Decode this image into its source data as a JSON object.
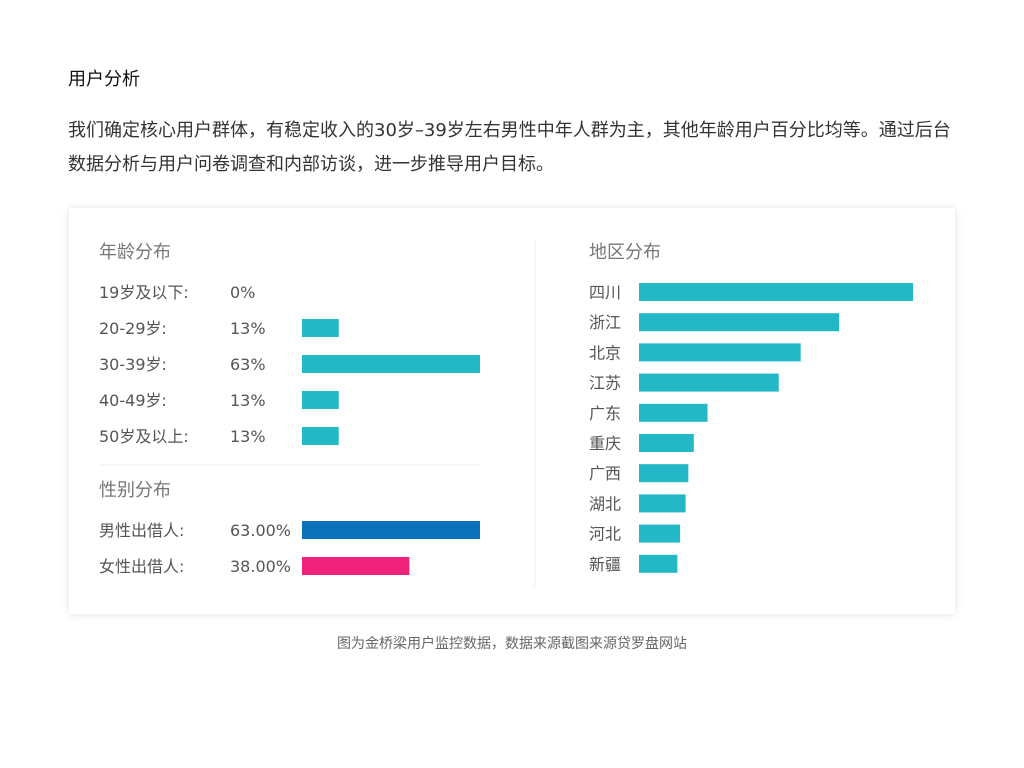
{
  "section": {
    "title": "用户分析",
    "intro": "我们确定核心用户群体，有稳定收入的30岁–39岁左右男性中年人群为主，其他年龄用户百分比均等。通过后台数据分析与用户问卷调查和内部访谈，进一步推导用户目标。"
  },
  "caption": "图为金桥梁用户监控数据，数据来源截图来源贷罗盘网站",
  "colors": {
    "teal": "#22b8c5",
    "blue": "#0972ba",
    "pink": "#ee2278",
    "divider": "#eeeeee"
  },
  "chart_data": [
    {
      "type": "bar",
      "title": "年龄分布",
      "orientation": "horizontal",
      "categories": [
        "19岁及以下:",
        "20-29岁:",
        "30-39岁:",
        "40-49岁:",
        "50岁及以上:"
      ],
      "values": [
        0,
        13,
        63,
        13,
        13
      ],
      "value_labels": [
        "0%",
        "13%",
        "63%",
        "13%",
        "13%"
      ],
      "xlim": [
        0,
        63
      ],
      "color": "#22b8c5"
    },
    {
      "type": "bar",
      "title": "性别分布",
      "orientation": "horizontal",
      "categories": [
        "男性出借人:",
        "女性出借人:"
      ],
      "values": [
        63.0,
        38.0
      ],
      "value_labels": [
        "63.00%",
        "38.00%"
      ],
      "xlim": [
        0,
        63
      ],
      "colors": [
        "#0972ba",
        "#ee2278"
      ]
    },
    {
      "type": "bar",
      "title": "地区分布",
      "orientation": "horizontal",
      "categories": [
        "四川",
        "浙江",
        "北京",
        "江苏",
        "广东",
        "重庆",
        "广西",
        "湖北",
        "河北",
        "新疆"
      ],
      "values": [
        100,
        73,
        59,
        51,
        25,
        20,
        18,
        17,
        15,
        14
      ],
      "xlim": [
        0,
        100
      ],
      "color": "#22b8c5"
    }
  ]
}
